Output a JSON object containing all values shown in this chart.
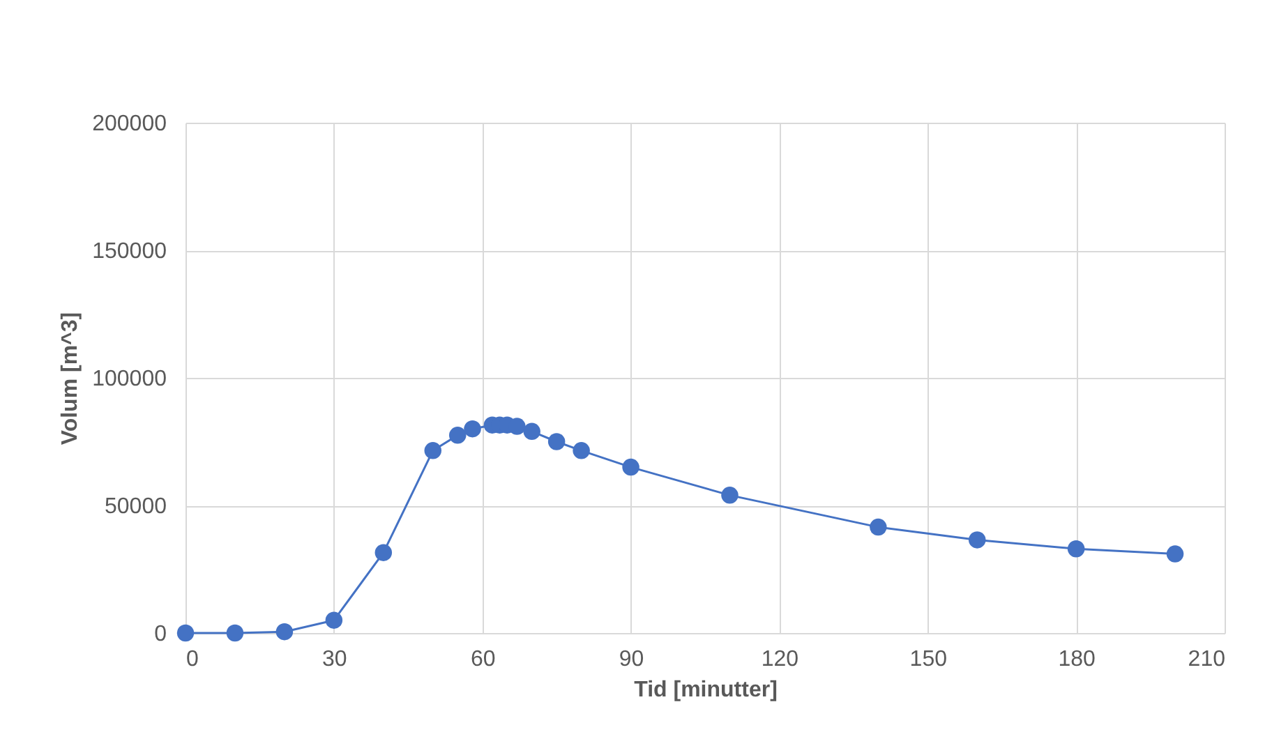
{
  "chart_data": {
    "type": "line",
    "xlabel": "Tid [minutter]",
    "ylabel": "Volum [m^3]",
    "x": [
      0,
      10,
      20,
      30,
      40,
      50,
      55,
      58,
      62,
      63.5,
      65,
      67,
      70,
      75,
      80,
      90,
      110,
      140,
      160,
      180,
      200
    ],
    "series": [
      {
        "color": "#4472c4",
        "values": [
          0,
          0,
          500,
          5000,
          31500,
          71500,
          77500,
          80000,
          81500,
          81500,
          81500,
          81000,
          79000,
          75000,
          71500,
          65000,
          54000,
          41500,
          36500,
          33000,
          31000
        ]
      }
    ],
    "xlim": [
      0,
      210
    ],
    "xticks": [
      0,
      30,
      60,
      90,
      120,
      150,
      180,
      210
    ],
    "ylim": [
      0,
      200000
    ],
    "yticks": [
      0,
      50000,
      100000,
      150000,
      200000
    ],
    "grid": true,
    "marker": "circle",
    "line_style": "solid"
  }
}
